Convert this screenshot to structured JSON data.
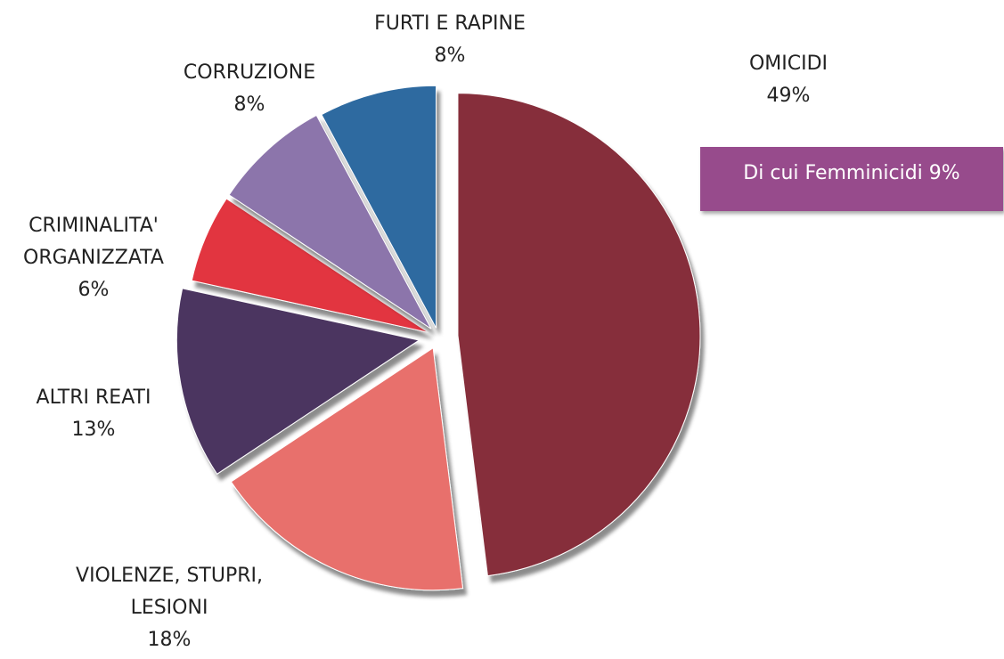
{
  "chart_data": {
    "type": "pie",
    "categories": [
      "OMICIDI",
      "VIOLENZE, STUPRI, LESIONI",
      "ALTRI REATI",
      "CRIMINALITA' ORGANIZZATA",
      "CORRUZIONE",
      "FURTI E RAPINE"
    ],
    "values": [
      49,
      18,
      13,
      6,
      8,
      8
    ],
    "value_labels": [
      "49%",
      "18%",
      "13%",
      "6%",
      "8%",
      "8%"
    ],
    "colors": [
      "#862e3a",
      "#e8706c",
      "#4b3560",
      "#e2353f",
      "#8c74ab",
      "#2e6aa0"
    ],
    "annotation": "Di cui Femminicidi 9%"
  }
}
